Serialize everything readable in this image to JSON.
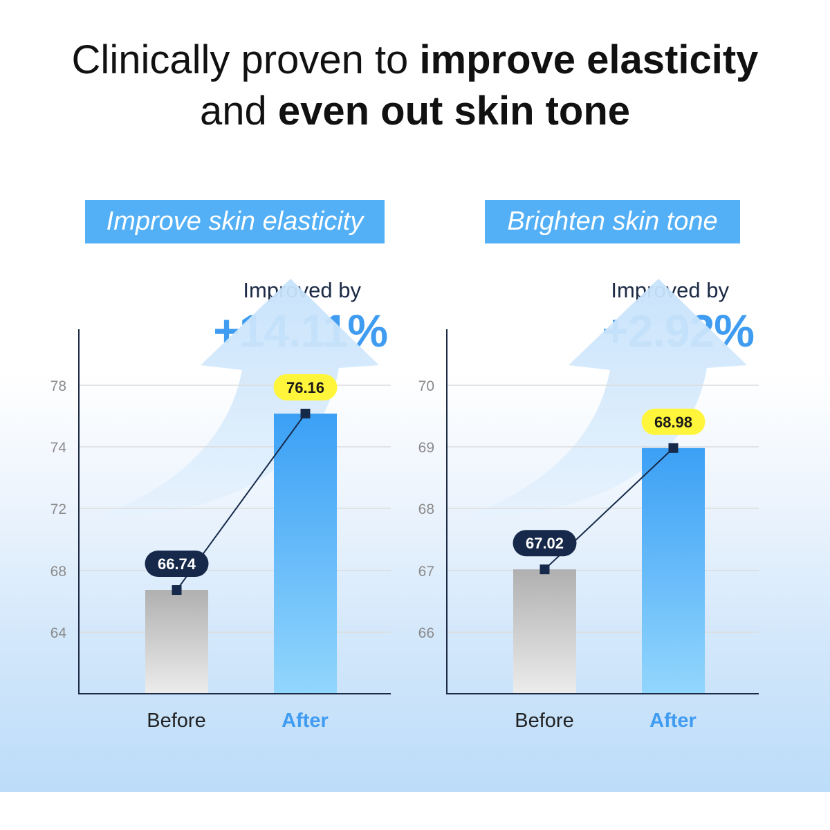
{
  "headline": {
    "line1_regular": "Clinically proven to ",
    "line1_bold": "improve elasticity",
    "line2_regular": "and ",
    "line2_bold": "even out skin tone"
  },
  "colors": {
    "banner": "#53b0f7",
    "accent_blue": "#3f9cf1",
    "before_bar_top": "#b2b2b2",
    "after_bar_top": "#3fa1f5",
    "before_label_bg": "#16294a",
    "after_label_bg": "#fff53a",
    "arrow": "#cfe6fa"
  },
  "chart_data": [
    {
      "type": "bar",
      "title": "Improve skin elasticity",
      "improved_label": "Improved by",
      "improved_value": "+14.11%",
      "categories": [
        "Before",
        "After"
      ],
      "values": [
        66.74,
        76.16
      ],
      "value_labels": [
        "66.74",
        "76.16"
      ],
      "yticks": [
        64,
        68,
        72,
        74,
        78
      ],
      "ytick_labels": [
        "64",
        "68",
        "72",
        "74",
        "78"
      ],
      "grid": true
    },
    {
      "type": "bar",
      "title": "Brighten skin tone",
      "improved_label": "Improved by",
      "improved_value": "+2.92%",
      "categories": [
        "Before",
        "After"
      ],
      "values": [
        67.02,
        68.98
      ],
      "value_labels": [
        "67.02",
        "68.98"
      ],
      "yticks": [
        66,
        67,
        68,
        69,
        70
      ],
      "ytick_labels": [
        "66",
        "67",
        "68",
        "69",
        "70"
      ],
      "grid": true
    }
  ]
}
